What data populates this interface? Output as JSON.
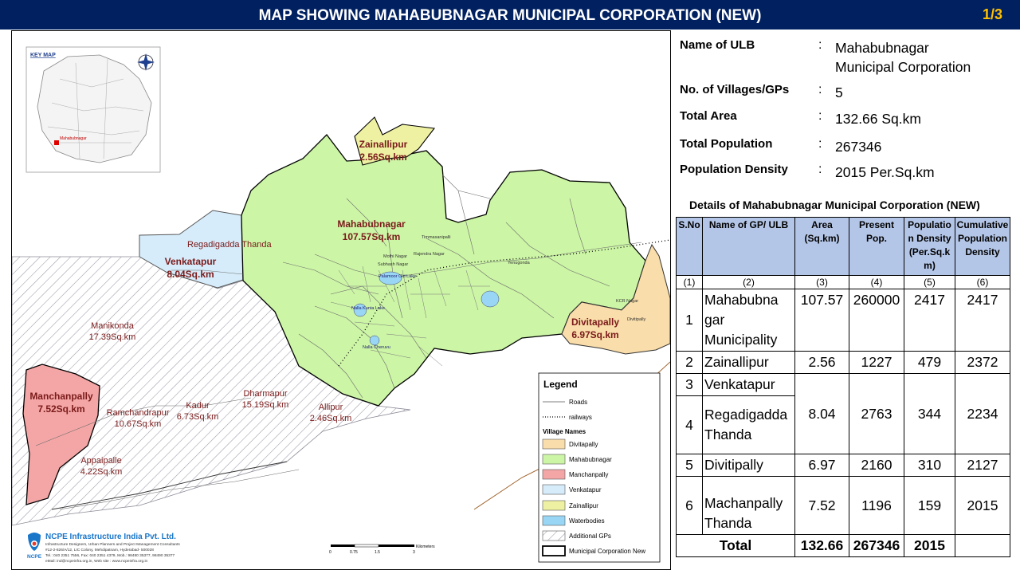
{
  "header": {
    "title": "MAP SHOWING MAHABUBNAGAR MUNICIPAL CORPORATION (NEW)",
    "page": "1/3"
  },
  "colors": {
    "header_bg": "#002060",
    "page_num": "#ffc000",
    "mahabubnagar": "#ccf5a6",
    "divitapally": "#f9ddaa",
    "manchanpally": "#f4a6a6",
    "venkatapur": "#d6ecfa",
    "zainallipur": "#eef0a2",
    "waterbodies": "#99d6f5",
    "label": "#7a1a1a",
    "table_header": "#b4c6e7"
  },
  "key_map": {
    "title": "KEY MAP",
    "label": "Mahabubnagar"
  },
  "map": {
    "labels": {
      "zainallipur": "Zainallipur",
      "zainallipur_area": "2.56Sq.km",
      "mahabubnagar": "Mahabubnagar",
      "mahabubnagar_area": "107.57Sq.km",
      "regadigadda": "Regadigadda Thanda",
      "venkatapur": "Venkatapur",
      "venkatapur_area": "8.04Sq.km",
      "divitapally": "Divitapally",
      "divitapally_area": "6.97Sq.km",
      "manikonda": "Manikonda",
      "manikonda_area": "17.39Sq.km",
      "manchanpally": "Manchanpally",
      "manchanpally_area": "7.52Sq.km",
      "ramchandrapur": "Ramchandrapur",
      "ramchandrapur_area": "10.67Sq.km",
      "kadur": "Kadur",
      "kadur_area": "6.73Sq.km",
      "dharmapur": "Dharmapur",
      "dharmapur_area": "15.19Sq.km",
      "allipur": "Allipur",
      "allipur_area": "2.46Sq.km",
      "appaipalle": "Appaipalle",
      "appaipalle_area": "4.22Sq.km",
      "palamoor_lake": "Palamoor Old Lake",
      "nalla_kunta": "Nalla Kunta Lake",
      "nalla_cheruvu": "Nalla Cheruvu",
      "mothi_nagar": "Mothi Nagar",
      "subhash_nagar": "Subhash Nagar",
      "rajendra_nagar": "Rajendra Nagar",
      "timmasanipalli": "Timmasanipalli",
      "yenugonda": "Yenugonda",
      "kcr_nagar": "KCR Nagar",
      "divitipally_small": "Divitipally"
    }
  },
  "legend": {
    "title": "Legend",
    "roads": "Roads",
    "railways": "railways",
    "village_names": "Village Names",
    "items": [
      "Divitapally",
      "Mahabubnagar",
      "Manchanpally",
      "Venkatapur",
      "Zainallipur",
      "Waterbodies",
      "Additional GPs",
      "Municipal Corporation New"
    ]
  },
  "scale": {
    "ticks": [
      "0",
      "0.75",
      "1.5",
      "3"
    ],
    "unit": "Kilometers"
  },
  "company": {
    "name": "NCPE Infrastructure India Pvt. Ltd.",
    "tagline": "Infrastructure Designers, Urban Planners and Project Management Consultants",
    "address": "#12-2-826/A/12, LIC Colony, Mehdipatnam, Hyderabad- 500028",
    "phone": "Tel.: 040 2351 7556, Fax: 040 2351 4379, Mob.: 98480 35377, 98490 35377",
    "email": "eMail: ind@ncpeinfra.org.in, Web site : www.ncpeinfra.org.in",
    "logo_text": "NCPE"
  },
  "info": [
    {
      "key": "Name of ULB",
      "value_line1": "Mahabubnagar",
      "value_line2": "Municipal Corporation"
    },
    {
      "key": "No. of Villages/GPs",
      "value": "5"
    },
    {
      "key": "Total Area",
      "value": "132.66 Sq.km"
    },
    {
      "key": "Total Population",
      "value": "267346"
    },
    {
      "key": "Population Density",
      "value": "2015 Per.Sq.km"
    }
  ],
  "info_colon": ":",
  "table": {
    "title": "Details of Mahabubnagar  Municipal Corporation (NEW)",
    "headers": [
      "S.No",
      "Name of  GP/ ULB",
      "Area (Sq.km)",
      "Present Pop.",
      "Populatio n Density (Per.Sq.k m)",
      "Cumulative Population Density"
    ],
    "numbers": [
      "(1)",
      "(2)",
      "(3)",
      "(4)",
      "(5)",
      "(6)"
    ],
    "rows": [
      {
        "sno": "1",
        "name": "Mahabubna gar Municipality",
        "area": "107.57",
        "pop": "260000",
        "density": "2417",
        "cum": "2417"
      },
      {
        "sno": "2",
        "name": "Zainallipur",
        "area": "2.56",
        "pop": "1227",
        "density": "479",
        "cum": "2372"
      },
      {
        "sno": "3",
        "name": "Venkatapur"
      },
      {
        "sno": "4",
        "name": "Regadigadda Thanda",
        "area": "8.04",
        "pop": "2763",
        "density": "344",
        "cum": "2234"
      },
      {
        "sno": "5",
        "name": "Divitipally",
        "area": "6.97",
        "pop": "2160",
        "density": "310",
        "cum": "2127"
      },
      {
        "sno": "6",
        "name": "Machanpally Thanda",
        "area": "7.52",
        "pop": "1196",
        "density": "159",
        "cum": "2015"
      }
    ],
    "total": {
      "label": "Total",
      "area": "132.66",
      "pop": "267346",
      "density": "2015"
    }
  }
}
